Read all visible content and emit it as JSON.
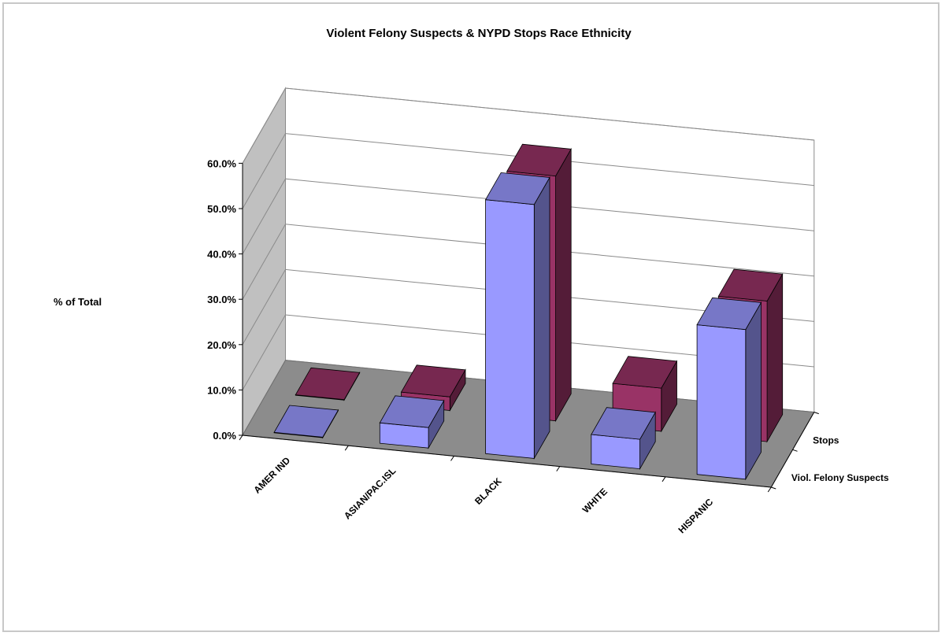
{
  "chart_data": {
    "type": "bar",
    "style": "3d-clustered-depth",
    "title": "Violent Felony Suspects & NYPD Stops Race Ethnicity",
    "ylabel": "% of Total",
    "ylim": [
      0,
      60
    ],
    "yticks": [
      "0.0%",
      "10.0%",
      "20.0%",
      "30.0%",
      "40.0%",
      "50.0%",
      "60.0%"
    ],
    "categories": [
      "AMER IND",
      "ASIAN/PAC.ISL",
      "BLACK",
      "WHITE",
      "HISPANIC"
    ],
    "series": [
      {
        "name": "Viol. Felony Suspects",
        "values": [
          0.1,
          4.5,
          56.0,
          6.5,
          33.0
        ],
        "color": "#9999ff"
      },
      {
        "name": "Stops",
        "values": [
          0.1,
          3.0,
          54.0,
          9.5,
          31.0
        ],
        "color": "#993366"
      }
    ],
    "grid": true
  }
}
